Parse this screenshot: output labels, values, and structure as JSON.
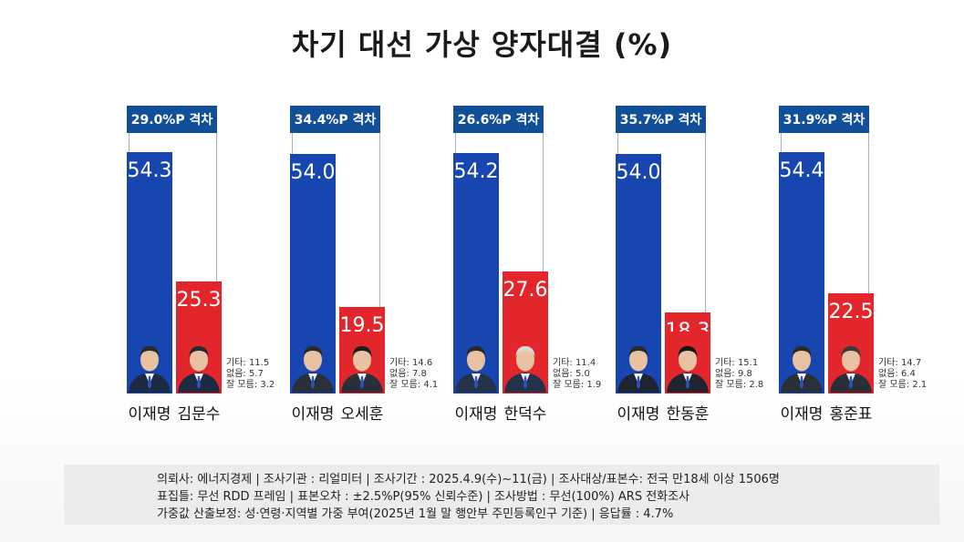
{
  "chart_data": {
    "type": "bar",
    "title": "차기 대선 가상 양자대결 (%)",
    "ylim": [
      0,
      54.4
    ],
    "matchups": [
      {
        "gap": "29.0%P 격차",
        "a": {
          "name": "이재명",
          "value": 54.3,
          "label": "54.3"
        },
        "b": {
          "name": "김문수",
          "value": 25.3,
          "label": "25.3"
        },
        "others": [
          "기타: 11.5",
          "없음: 5.7",
          "잘 모름: 3.2"
        ]
      },
      {
        "gap": "34.4%P 격차",
        "a": {
          "name": "이재명",
          "value": 54.0,
          "label": "54.0"
        },
        "b": {
          "name": "오세훈",
          "value": 19.5,
          "label": "19.5"
        },
        "others": [
          "기타: 14.6",
          "없음: 7.8",
          "잘 모름: 4.1"
        ]
      },
      {
        "gap": "26.6%P 격차",
        "a": {
          "name": "이재명",
          "value": 54.2,
          "label": "54.2"
        },
        "b": {
          "name": "한덕수",
          "value": 27.6,
          "label": "27.6"
        },
        "others": [
          "기타: 11.4",
          "없음: 5.0",
          "잘 모름: 1.9"
        ]
      },
      {
        "gap": "35.7%P 격차",
        "a": {
          "name": "이재명",
          "value": 54.0,
          "label": "54.0"
        },
        "b": {
          "name": "한동훈",
          "value": 18.3,
          "label": "18.3"
        },
        "others": [
          "기타: 15.1",
          "없음: 9.8",
          "잘 모름: 2.8"
        ]
      },
      {
        "gap": "31.9%P 격차",
        "a": {
          "name": "이재명",
          "value": 54.4,
          "label": "54.4"
        },
        "b": {
          "name": "홍준표",
          "value": 22.5,
          "label": "22.5"
        },
        "others": [
          "기타: 14.7",
          "없음: 6.4",
          "잘 모름: 2.1"
        ]
      }
    ]
  },
  "footer": {
    "line1": "의뢰사: 에너지경제 | 조사기관 : 리얼미터  |  조사기간 : 2025.4.9(수)~11(금) | 조사대상/표본수: 전국 만18세 이상 1506명",
    "line2": "표집틀: 무선 RDD 프레임 | 표본오차 : ±2.5%P(95% 신뢰수준) | 조사방법 : 무선(100%) ARS 전화조사",
    "line3": "가중값 산출보정: 성·연령·지역별 가중 부여(2025년 1월 말 행안부 주민등록인구 기준) | 응답률 : 4.7%"
  },
  "colors": {
    "blue": "#1746b0",
    "red": "#e3252c",
    "gap_box": "#114f98"
  }
}
